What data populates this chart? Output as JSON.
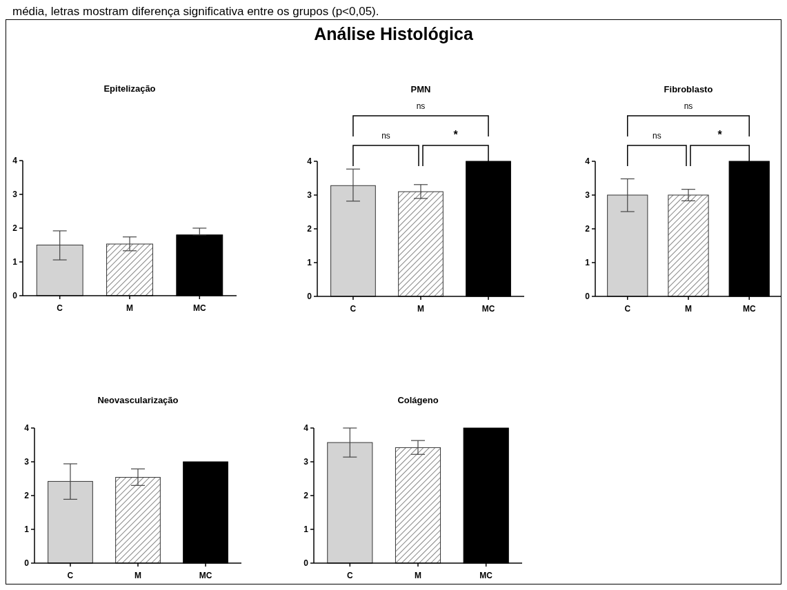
{
  "chart_data": [
    {
      "type": "other",
      "title": "Análise Histológica",
      "annotations": [
        "média, letras mostram diferença significativa entre os grupos (p<0,05)."
      ]
    },
    {
      "type": "bar",
      "title": "Epitelização",
      "categories": [
        "C",
        "M",
        "MC"
      ],
      "values": [
        1.5,
        1.53,
        1.8
      ],
      "colors": [
        "#d3d3d3",
        "#333333",
        "#000000"
      ],
      "errors": [
        [
          1.06,
          1.92
        ],
        [
          1.33,
          1.74
        ],
        [
          1.8,
          2.0
        ]
      ],
      "ylim": [
        0,
        4
      ],
      "yticks": [
        0,
        1,
        2,
        3,
        4
      ],
      "grid": false
    },
    {
      "type": "bar",
      "title": "PMN",
      "categories": [
        "C",
        "M",
        "MC"
      ],
      "values": [
        3.28,
        3.1,
        4
      ],
      "colors": [
        "#d3d3d3",
        "#333333",
        "#000000"
      ],
      "errors": [
        [
          2.82,
          3.77
        ],
        [
          2.9,
          3.31
        ],
        null
      ],
      "ylim": [
        0,
        4
      ],
      "yticks": [
        0,
        1,
        2,
        3,
        4
      ],
      "grid": false,
      "annotations": [
        "ns",
        "*",
        "ns"
      ]
    },
    {
      "type": "bar",
      "title": "Fibroblasto",
      "categories": [
        "C",
        "M",
        "MC"
      ],
      "values": [
        3,
        3,
        4
      ],
      "colors": [
        "#d3d3d3",
        "#333333",
        "#000000"
      ],
      "errors": [
        [
          2.51,
          3.48
        ],
        [
          2.83,
          3.17
        ],
        null
      ],
      "ylim": [
        0,
        4
      ],
      "yticks": [
        0,
        1,
        2,
        3,
        4
      ],
      "grid": false,
      "annotations": [
        "ns",
        "*",
        "ns"
      ]
    },
    {
      "type": "bar",
      "title": "Neovascularização",
      "categories": [
        "C",
        "M",
        "MC"
      ],
      "values": [
        2.42,
        2.54,
        3
      ],
      "colors": [
        "#d3d3d3",
        "#333333",
        "#000000"
      ],
      "errors": [
        [
          1.89,
          2.94
        ],
        [
          2.3,
          2.79
        ],
        null
      ],
      "ylim": [
        0,
        4
      ],
      "yticks": [
        0,
        1,
        2,
        3,
        4
      ],
      "grid": false
    },
    {
      "type": "bar",
      "title": "Colágeno",
      "categories": [
        "C",
        "M",
        "MC"
      ],
      "values": [
        3.57,
        3.42,
        4
      ],
      "colors": [
        "#d3d3d3",
        "#333333",
        "#000000"
      ],
      "errors": [
        [
          3.14,
          4.0
        ],
        [
          3.22,
          3.63
        ],
        null
      ],
      "ylim": [
        0,
        4
      ],
      "yticks": [
        0,
        1,
        2,
        3,
        4
      ],
      "grid": false
    }
  ]
}
